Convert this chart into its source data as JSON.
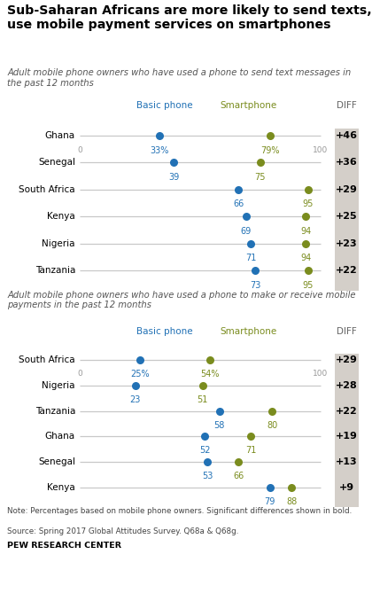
{
  "title": "Sub-Saharan Africans are more likely to send texts,\nuse mobile payment services on smartphones",
  "subtitle1": "Adult mobile phone owners who have used a phone to send text messages in\nthe past 12 months",
  "subtitle2": "Adult mobile phone owners who have used a phone to make or receive mobile\npayments in the past 12 months",
  "note1": "Note: Percentages based on mobile phone owners. Significant differences shown in ",
  "note1b": "bold",
  "note2": "Source: Spring 2017 Global Attitudes Survey. Q68a & Q68g.",
  "source": "PEW RESEARCH CENTER",
  "section1": {
    "countries": [
      "Ghana",
      "Senegal",
      "South Africa",
      "Kenya",
      "Nigeria",
      "Tanzania"
    ],
    "basic": [
      33,
      39,
      66,
      69,
      71,
      73
    ],
    "smartphone": [
      79,
      75,
      95,
      94,
      94,
      95
    ],
    "diff": [
      "+46",
      "+36",
      "+29",
      "+25",
      "+23",
      "+22"
    ],
    "basic_pct": [
      "33%",
      "39",
      "66",
      "69",
      "71",
      "73"
    ],
    "smart_pct": [
      "79%",
      "75",
      "95",
      "94",
      "94",
      "95"
    ]
  },
  "section2": {
    "countries": [
      "South Africa",
      "Nigeria",
      "Tanzania",
      "Ghana",
      "Senegal",
      "Kenya"
    ],
    "basic": [
      25,
      23,
      58,
      52,
      53,
      79
    ],
    "smartphone": [
      54,
      51,
      80,
      71,
      66,
      88
    ],
    "diff": [
      "+29",
      "+28",
      "+22",
      "+19",
      "+13",
      "+9"
    ],
    "basic_pct": [
      "25%",
      "23",
      "58",
      "52",
      "53",
      "79"
    ],
    "smart_pct": [
      "54%",
      "51",
      "80",
      "71",
      "66",
      "88"
    ]
  },
  "blue_color": "#2171b5",
  "green_color": "#7a8c1e",
  "diff_bg": "#d4cfc9",
  "line_color": "#c8c8c8",
  "basic_label": "Basic phone",
  "smartphone_label": "Smartphone",
  "diff_label": "DIFF"
}
